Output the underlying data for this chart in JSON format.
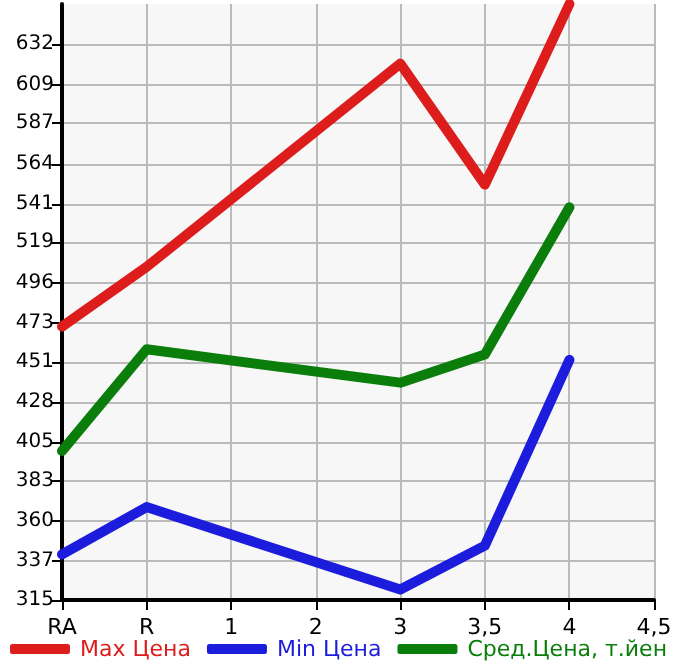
{
  "chart_data": {
    "type": "line",
    "categories": [
      "RA",
      "R",
      "1",
      "2",
      "3",
      "3,5",
      "4",
      "4,5"
    ],
    "series": [
      {
        "name": "Max Цена",
        "color": "#dd1c1c",
        "values": [
          471,
          505,
          null,
          null,
          621,
          552,
          655,
          null
        ]
      },
      {
        "name": "Min Цена",
        "color": "#1c1cdd",
        "values": [
          341,
          368,
          null,
          null,
          321,
          346,
          452,
          null
        ]
      },
      {
        "name": "Сред.Цена, т.йен",
        "color": "#0a7d0a",
        "values": [
          400,
          458,
          null,
          null,
          439,
          455,
          539,
          null
        ]
      }
    ],
    "ylim": [
      315,
      655
    ],
    "yticks": [
      315,
      337,
      360,
      383,
      405,
      428,
      451,
      473,
      496,
      519,
      541,
      564,
      587,
      609,
      632
    ],
    "grid": true,
    "legend": "bottom",
    "marker": "none",
    "line_style": "solid"
  }
}
